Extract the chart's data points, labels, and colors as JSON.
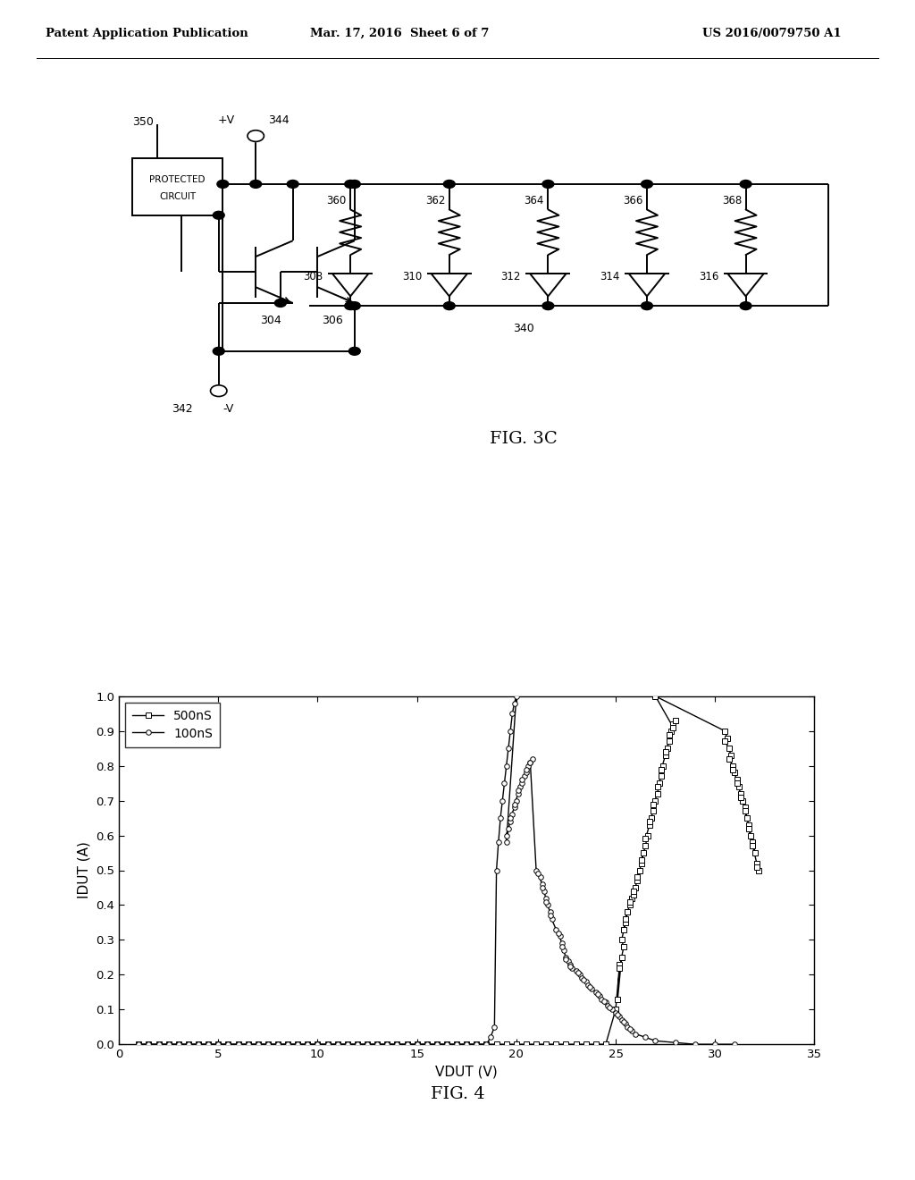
{
  "header_left": "Patent Application Publication",
  "header_center": "Mar. 17, 2016  Sheet 6 of 7",
  "header_right": "US 2016/0079750 A1",
  "fig3c_label": "FIG. 3C",
  "fig4_label": "FIG. 4",
  "graph_xlabel": "VDUT (V)",
  "graph_ylabel": "IDUT (A)",
  "graph_xlim": [
    0,
    35
  ],
  "graph_ylim": [
    0,
    1.0
  ],
  "graph_xticks": [
    0,
    5,
    10,
    15,
    20,
    25,
    30,
    35
  ],
  "graph_yticks": [
    0,
    0.1,
    0.2,
    0.3,
    0.4,
    0.5,
    0.6,
    0.7,
    0.8,
    0.9,
    1.0
  ],
  "legend_500nS": "500nS",
  "legend_100nS": "100nS",
  "bg_color": "#ffffff",
  "line_color": "#000000"
}
